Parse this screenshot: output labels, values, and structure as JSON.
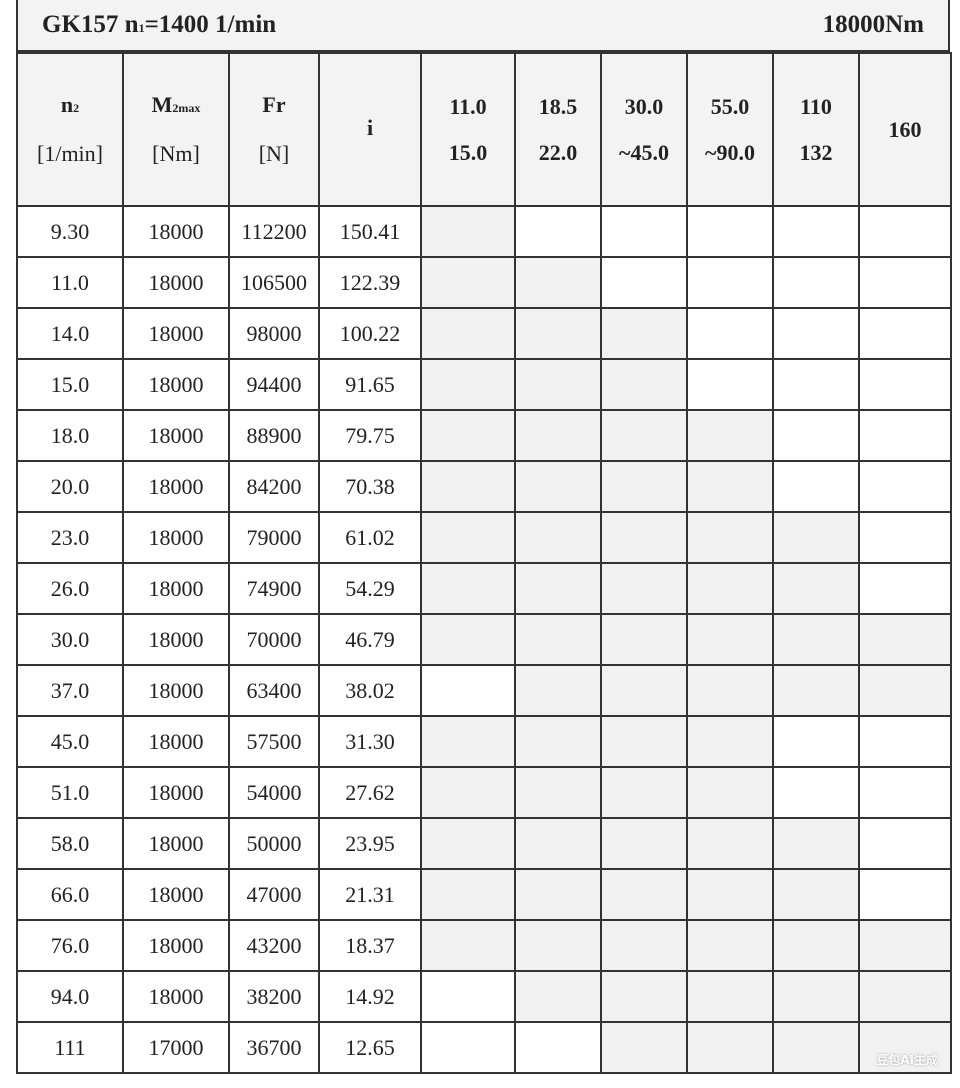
{
  "title": {
    "model": "GK157",
    "n1_label": "n",
    "n1_sub": "1",
    "n1_value": "=1400 1/min",
    "torque": "18000Nm"
  },
  "headers": [
    {
      "main": "n",
      "sub": "2",
      "unit": "[1/min]"
    },
    {
      "main": "M",
      "sub": "2max",
      "unit": "[Nm]"
    },
    {
      "main": "Fr",
      "sub": "",
      "unit": "[N]"
    },
    {
      "main": "i",
      "sub": "",
      "unit": ""
    }
  ],
  "power_headers": [
    {
      "line1": "11.0",
      "line2": "15.0"
    },
    {
      "line1": "18.5",
      "line2": "22.0"
    },
    {
      "line1": "30.0",
      "line2": "~45.0"
    },
    {
      "line1": "55.0",
      "line2": "~90.0"
    },
    {
      "line1": "110",
      "line2": "132"
    },
    {
      "line1": "160",
      "line2": ""
    }
  ],
  "rows": [
    {
      "n2": "9.30",
      "m2max": "18000",
      "fr": "112200",
      "i": "150.41",
      "available": [
        1,
        0,
        0,
        0,
        0,
        0
      ]
    },
    {
      "n2": "11.0",
      "m2max": "18000",
      "fr": "106500",
      "i": "122.39",
      "available": [
        1,
        1,
        0,
        0,
        0,
        0
      ]
    },
    {
      "n2": "14.0",
      "m2max": "18000",
      "fr": "98000",
      "i": "100.22",
      "available": [
        1,
        1,
        1,
        0,
        0,
        0
      ]
    },
    {
      "n2": "15.0",
      "m2max": "18000",
      "fr": "94400",
      "i": "91.65",
      "available": [
        1,
        1,
        1,
        0,
        0,
        0
      ]
    },
    {
      "n2": "18.0",
      "m2max": "18000",
      "fr": "88900",
      "i": "79.75",
      "available": [
        1,
        1,
        1,
        1,
        0,
        0
      ]
    },
    {
      "n2": "20.0",
      "m2max": "18000",
      "fr": "84200",
      "i": "70.38",
      "available": [
        1,
        1,
        1,
        1,
        0,
        0
      ]
    },
    {
      "n2": "23.0",
      "m2max": "18000",
      "fr": "79000",
      "i": "61.02",
      "available": [
        1,
        1,
        1,
        1,
        1,
        0
      ]
    },
    {
      "n2": "26.0",
      "m2max": "18000",
      "fr": "74900",
      "i": "54.29",
      "available": [
        1,
        1,
        1,
        1,
        1,
        0
      ]
    },
    {
      "n2": "30.0",
      "m2max": "18000",
      "fr": "70000",
      "i": "46.79",
      "available": [
        1,
        1,
        1,
        1,
        1,
        1
      ]
    },
    {
      "n2": "37.0",
      "m2max": "18000",
      "fr": "63400",
      "i": "38.02",
      "available": [
        0,
        1,
        1,
        1,
        1,
        1
      ]
    },
    {
      "n2": "45.0",
      "m2max": "18000",
      "fr": "57500",
      "i": "31.30",
      "available": [
        1,
        1,
        1,
        1,
        0,
        0
      ]
    },
    {
      "n2": "51.0",
      "m2max": "18000",
      "fr": "54000",
      "i": "27.62",
      "available": [
        1,
        1,
        1,
        1,
        0,
        0
      ]
    },
    {
      "n2": "58.0",
      "m2max": "18000",
      "fr": "50000",
      "i": "23.95",
      "available": [
        1,
        1,
        1,
        1,
        1,
        0
      ]
    },
    {
      "n2": "66.0",
      "m2max": "18000",
      "fr": "47000",
      "i": "21.31",
      "available": [
        1,
        1,
        1,
        1,
        1,
        0
      ]
    },
    {
      "n2": "76.0",
      "m2max": "18000",
      "fr": "43200",
      "i": "18.37",
      "available": [
        1,
        1,
        1,
        1,
        1,
        1
      ]
    },
    {
      "n2": "94.0",
      "m2max": "18000",
      "fr": "38200",
      "i": "14.92",
      "available": [
        0,
        1,
        1,
        1,
        1,
        1
      ]
    },
    {
      "n2": "111",
      "m2max": "17000",
      "fr": "36700",
      "i": "12.65",
      "available": [
        0,
        0,
        1,
        1,
        1,
        1
      ]
    }
  ],
  "colors": {
    "shaded": "#f1f1f1",
    "blank": "#ffffff",
    "border": "#333333"
  },
  "watermark": "豆包AI生成"
}
